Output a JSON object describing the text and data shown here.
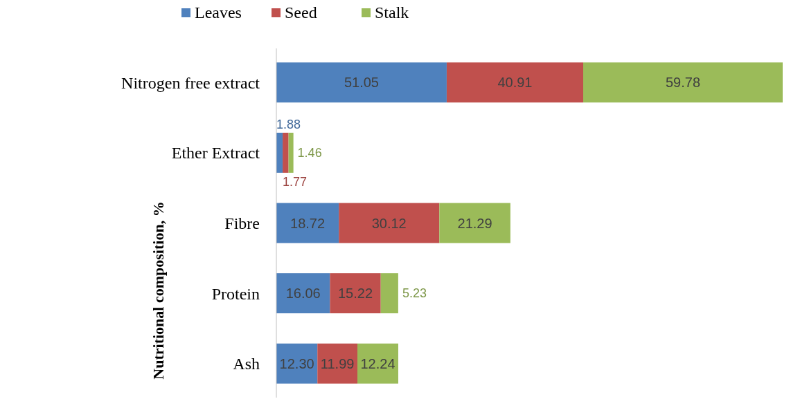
{
  "chart_data": {
    "type": "bar",
    "orientation": "horizontal",
    "stacked": true,
    "ylabel": "Nutritional composition, %",
    "legend": "top",
    "categories": [
      "Nitrogen free extract",
      "Ether Extract",
      "Fibre",
      "Protein",
      "Ash"
    ],
    "series": [
      {
        "name": "Leaves",
        "color": "#4f81bd",
        "values": [
          51.05,
          1.88,
          18.72,
          16.06,
          12.3
        ],
        "value_labels": [
          "51.05",
          "1.88",
          "18.72",
          "16.06",
          "12.30"
        ]
      },
      {
        "name": "Seed",
        "color": "#c0504d",
        "values": [
          40.91,
          1.77,
          30.12,
          15.22,
          11.99
        ],
        "value_labels": [
          "40.91",
          "1.77",
          "30.12",
          "15.22",
          "11.99"
        ]
      },
      {
        "name": "Stalk",
        "color": "#9bbb59",
        "values": [
          59.78,
          1.46,
          21.29,
          5.23,
          12.24
        ],
        "value_labels": [
          "59.78",
          "1.46",
          "21.29",
          "5.23",
          "12.24"
        ]
      }
    ]
  }
}
